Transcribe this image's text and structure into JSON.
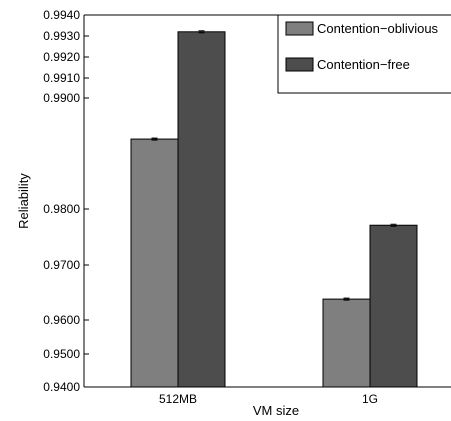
{
  "chart_data": {
    "type": "bar",
    "title": "",
    "xlabel": "VM size",
    "ylabel": "Reliability",
    "categories": [
      "512MB",
      "1G"
    ],
    "series": [
      {
        "name": "Contention−oblivious",
        "values": [
          0.9863,
          0.9638
        ],
        "color": "#7f7f7f"
      },
      {
        "name": "Contention−free",
        "values": [
          0.9932,
          0.9771
        ],
        "color": "#4d4d4d"
      }
    ],
    "yticks": [
      {
        "value": 0.94,
        "label": "0.9400"
      },
      {
        "value": 0.95,
        "label": "0.9500"
      },
      {
        "value": 0.96,
        "label": "0.9600"
      },
      {
        "value": 0.97,
        "label": "0.9700"
      },
      {
        "value": 0.98,
        "label": "0.9800"
      },
      {
        "value": 0.99,
        "label": "0.9900"
      },
      {
        "value": 0.991,
        "label": "0.9910"
      },
      {
        "value": 0.992,
        "label": "0.9920"
      },
      {
        "value": 0.993,
        "label": "0.9930"
      },
      {
        "value": 0.994,
        "label": "0.9940"
      }
    ],
    "ylim": [
      0.94,
      0.994
    ],
    "y_scale": "nonlinear (tick spacing compresses toward top)",
    "grid": false,
    "legend": "top-right",
    "error_bars": true
  }
}
